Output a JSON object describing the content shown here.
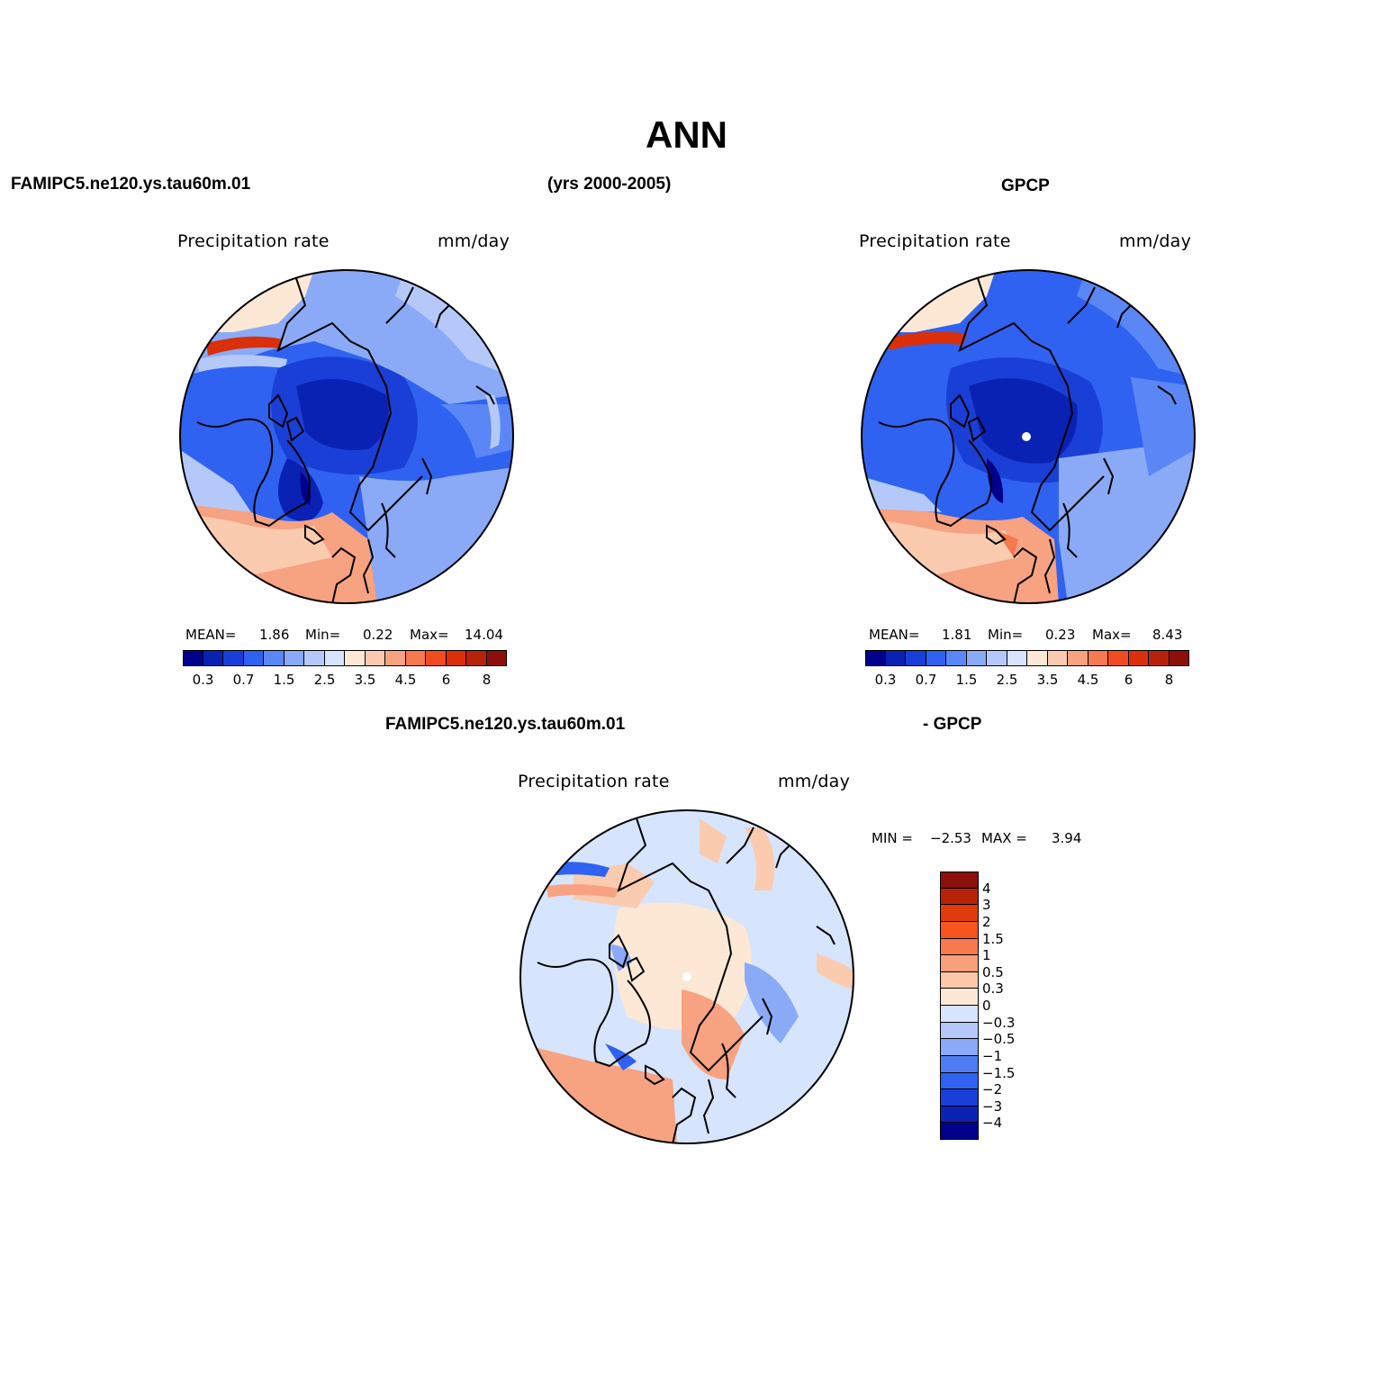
{
  "title": "ANN",
  "top_left_label": "FAMIPC5.ne120.ys.tau60m.01",
  "top_center_label": "(yrs 2000-2005)",
  "top_right_label": "GPCP",
  "bottom_left_label": "FAMIPC5.ne120.ys.tau60m.01",
  "bottom_right_label": "- GPCP",
  "panels": [
    {
      "name": "model",
      "variable": "Precipitation rate",
      "units": "mm/day",
      "mean_label": "MEAN=",
      "mean": "1.86",
      "min_label": "Min=",
      "min": "0.22",
      "max_label": "Max=",
      "max": "14.04"
    },
    {
      "name": "obs",
      "variable": "Precipitation rate",
      "units": "mm/day",
      "mean_label": "MEAN=",
      "mean": "1.81",
      "min_label": "Min=",
      "min": "0.23",
      "max_label": "Max=",
      "max": "8.43"
    },
    {
      "name": "difference",
      "variable": "Precipitation rate",
      "units": "mm/day",
      "min_label": "MIN =",
      "min": "−2.53",
      "max_label": "MAX =",
      "max": "3.94"
    }
  ],
  "colorbar_horizontal": {
    "colors": [
      "#00008c",
      "#0a22b3",
      "#1a3fd6",
      "#2f62f0",
      "#5a87f5",
      "#8aaaf7",
      "#b4c9fa",
      "#d6e4fd",
      "#fde8d6",
      "#fbcbb0",
      "#f7a280",
      "#f6794f",
      "#f04c22",
      "#da3009",
      "#b7220b",
      "#8c0f0b"
    ],
    "labels": [
      "0.3",
      "0.7",
      "1.5",
      "2.5",
      "3.5",
      "4.5",
      "6",
      "8"
    ]
  },
  "colorbar_vertical": {
    "colors": [
      "#8c0f0b",
      "#b7220b",
      "#e03a0d",
      "#f6551f",
      "#f7794f",
      "#f8a07c",
      "#fbc8a8",
      "#fde8d6",
      "#d6e4fd",
      "#b4c9fa",
      "#8aaaf7",
      "#4f7cf3",
      "#2f62f0",
      "#1a3fd6",
      "#0a22b3",
      "#00008c"
    ],
    "labels": [
      "4",
      "3",
      "2",
      "1.5",
      "1",
      "0.5",
      "0.3",
      "0",
      "−0.3",
      "−0.5",
      "−1",
      "−1.5",
      "−2",
      "−3",
      "−4"
    ]
  }
}
